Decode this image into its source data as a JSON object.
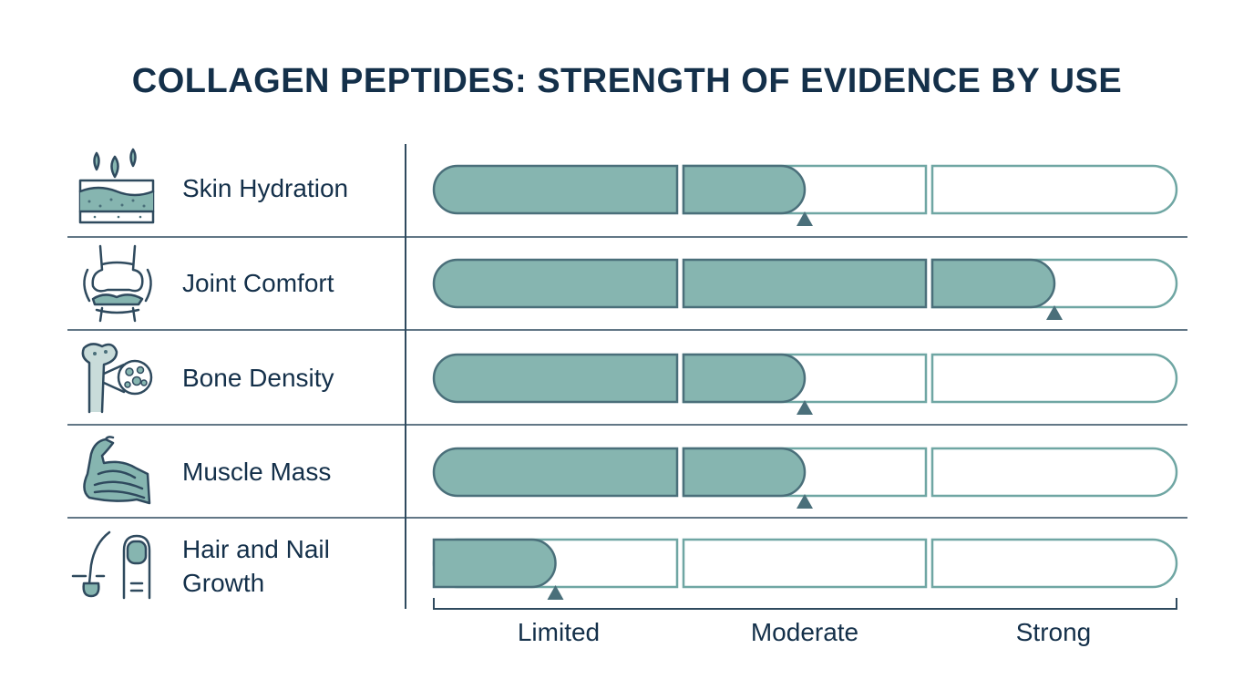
{
  "title": "COLLAGEN PEPTIDES: STRENGTH OF EVIDENCE BY USE",
  "colors": {
    "fill": "#86b5b0",
    "outline": "#4a6f7a",
    "empty_outline": "#6fa6a3",
    "text": "#14304a",
    "marker": "#4a6f7a",
    "grid": "#2f4a5e"
  },
  "chart_data": {
    "type": "bar",
    "orientation": "horizontal",
    "title": "COLLAGEN PEPTIDES: STRENGTH OF EVIDENCE BY USE",
    "scale_categories": [
      "Limited",
      "Moderate",
      "Strong"
    ],
    "xlim": [
      0,
      3
    ],
    "rows": [
      {
        "label": "Skin Hydration",
        "icon": "skin-layers-water-drops-icon",
        "value": 1.5
      },
      {
        "label": "Joint Comfort",
        "icon": "knee-joint-icon",
        "value": 2.5
      },
      {
        "label": "Bone Density",
        "icon": "bone-magnified-icon",
        "value": 1.5
      },
      {
        "label": "Muscle Mass",
        "icon": "flexed-arm-muscle-icon",
        "value": 1.5
      },
      {
        "label": "Hair and Nail Growth",
        "icon": "hair-follicle-and-nail-icon",
        "value": 0.5
      }
    ]
  }
}
